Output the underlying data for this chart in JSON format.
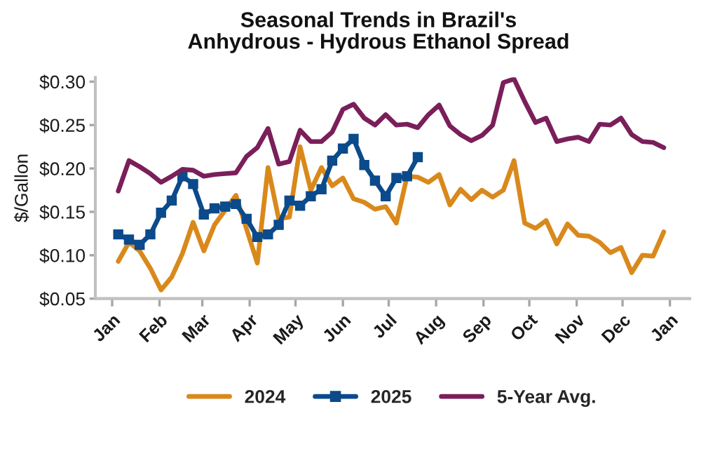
{
  "chart_data": {
    "type": "line",
    "title": "Seasonal Trends in Brazil's\nAnhydrous - Hydrous Ethanol Spread",
    "ylabel": "$/Gallon",
    "x": [
      "2025-01-05",
      "2025-01-12",
      "2025-01-19",
      "2025-01-26",
      "2025-02-02",
      "2025-02-09",
      "2025-02-16",
      "2025-02-23",
      "2025-03-02",
      "2025-03-09",
      "2025-03-16",
      "2025-03-23",
      "2025-03-30",
      "2025-04-06",
      "2025-04-13",
      "2025-04-20",
      "2025-04-27",
      "2025-05-04",
      "2025-05-11",
      "2025-05-18",
      "2025-05-25",
      "2025-06-01",
      "2025-06-08",
      "2025-06-15",
      "2025-06-22",
      "2025-06-29",
      "2025-07-06",
      "2025-07-13",
      "2025-07-20",
      "2025-07-27",
      "2025-08-03",
      "2025-08-10",
      "2025-08-17",
      "2025-08-24",
      "2025-08-31",
      "2025-09-07",
      "2025-09-14",
      "2025-09-21",
      "2025-09-28",
      "2025-10-05",
      "2025-10-12",
      "2025-10-19",
      "2025-10-26",
      "2025-11-02",
      "2025-11-09",
      "2025-11-16",
      "2025-11-23",
      "2025-11-30",
      "2025-12-07",
      "2025-12-14",
      "2025-12-21",
      "2025-12-28"
    ],
    "xlim": [
      "2024-12-21",
      "2026-01-14"
    ],
    "xticks": [
      {
        "value": "2025-01-01",
        "label": "Jan"
      },
      {
        "value": "2025-02-01",
        "label": "Feb"
      },
      {
        "value": "2025-03-01",
        "label": "Mar"
      },
      {
        "value": "2025-04-01",
        "label": "Apr"
      },
      {
        "value": "2025-05-01",
        "label": "May"
      },
      {
        "value": "2025-06-01",
        "label": "Jun"
      },
      {
        "value": "2025-07-01",
        "label": "Jul"
      },
      {
        "value": "2025-08-01",
        "label": "Aug"
      },
      {
        "value": "2025-09-01",
        "label": "Sep"
      },
      {
        "value": "2025-10-01",
        "label": "Oct"
      },
      {
        "value": "2025-11-01",
        "label": "Nov"
      },
      {
        "value": "2025-12-01",
        "label": "Dec"
      },
      {
        "value": "2026-01-01",
        "label": "Jan"
      }
    ],
    "ylim": [
      0.05,
      0.305
    ],
    "yticks": [
      {
        "value": 0.05,
        "label": "$0.05"
      },
      {
        "value": 0.1,
        "label": "$0.10"
      },
      {
        "value": 0.15,
        "label": "$0.15"
      },
      {
        "value": 0.2,
        "label": "$0.20"
      },
      {
        "value": 0.25,
        "label": "$0.25"
      },
      {
        "value": 0.3,
        "label": "$0.30"
      }
    ],
    "legend": "bottom",
    "series": [
      {
        "name": "2024",
        "color": "#d9891c",
        "marker": "none",
        "values": [
          0.093,
          0.115,
          0.105,
          0.085,
          0.06,
          0.075,
          0.102,
          0.138,
          0.105,
          0.135,
          0.152,
          0.169,
          0.13,
          0.091,
          0.201,
          0.142,
          0.144,
          0.225,
          0.175,
          0.201,
          0.18,
          0.189,
          0.165,
          0.161,
          0.153,
          0.156,
          0.137,
          0.191,
          0.19,
          0.184,
          0.193,
          0.158,
          0.176,
          0.164,
          0.175,
          0.167,
          0.175,
          0.209,
          0.137,
          0.131,
          0.14,
          0.113,
          0.136,
          0.123,
          0.122,
          0.115,
          0.103,
          0.109,
          0.08,
          0.1,
          0.099,
          0.127
        ]
      },
      {
        "name": "2025",
        "color": "#0b4a8b",
        "marker": "square",
        "x": [
          "2025-01-05",
          "2025-01-12",
          "2025-01-19",
          "2025-01-26",
          "2025-02-02",
          "2025-02-09",
          "2025-02-16",
          "2025-02-23",
          "2025-03-02",
          "2025-03-09",
          "2025-03-16",
          "2025-03-23",
          "2025-03-30",
          "2025-04-06",
          "2025-04-13",
          "2025-04-20",
          "2025-04-27",
          "2025-05-04",
          "2025-05-11",
          "2025-05-18",
          "2025-05-25",
          "2025-06-01",
          "2025-06-08",
          "2025-06-15",
          "2025-06-22",
          "2025-06-29",
          "2025-07-06",
          "2025-07-13",
          "2025-07-20"
        ],
        "values": [
          0.124,
          0.118,
          0.112,
          0.124,
          0.149,
          0.163,
          0.191,
          0.182,
          0.147,
          0.154,
          0.156,
          0.159,
          0.142,
          0.121,
          0.124,
          0.135,
          0.163,
          0.157,
          0.168,
          0.176,
          0.209,
          0.223,
          0.234,
          0.204,
          0.186,
          0.168,
          0.189,
          0.191,
          0.213
        ]
      },
      {
        "name": "5-Year Avg.",
        "color": "#7a1f5a",
        "marker": "none",
        "values": [
          0.174,
          0.209,
          0.202,
          0.194,
          0.184,
          0.191,
          0.199,
          0.198,
          0.191,
          0.193,
          0.194,
          0.195,
          0.214,
          0.224,
          0.246,
          0.205,
          0.208,
          0.244,
          0.231,
          0.231,
          0.242,
          0.268,
          0.274,
          0.258,
          0.25,
          0.262,
          0.25,
          0.251,
          0.247,
          0.262,
          0.273,
          0.249,
          0.239,
          0.232,
          0.238,
          0.25,
          0.299,
          0.303,
          0.277,
          0.253,
          0.258,
          0.231,
          0.234,
          0.236,
          0.231,
          0.251,
          0.25,
          0.258,
          0.239,
          0.231,
          0.23,
          0.224
        ]
      }
    ]
  }
}
